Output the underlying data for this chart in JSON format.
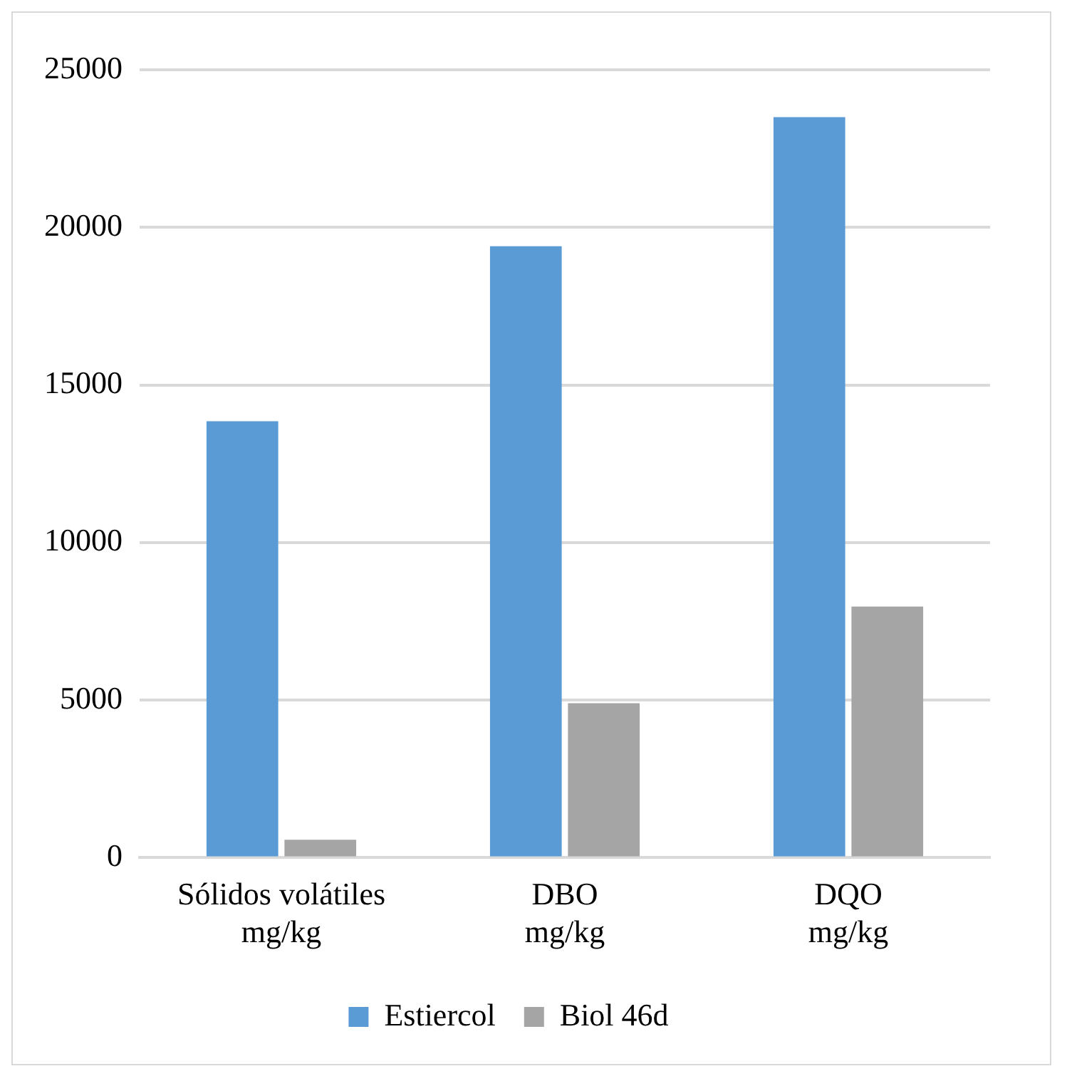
{
  "chart_data": {
    "type": "bar",
    "categories": [
      "Sólidos volátiles mg/kg",
      "DBO mg/kg",
      "DQO mg/kg"
    ],
    "series": [
      {
        "name": "Estiercol",
        "color": "#5b9bd5",
        "values": [
          13850,
          19400,
          23500
        ]
      },
      {
        "name": "Biol 46d",
        "color": "#a5a5a5",
        "values": [
          570,
          4900,
          7970
        ]
      }
    ],
    "ylim": [
      0,
      25000
    ],
    "yticks": [
      0,
      5000,
      10000,
      15000,
      20000,
      25000
    ],
    "grid": "y",
    "legend": "bottom"
  }
}
